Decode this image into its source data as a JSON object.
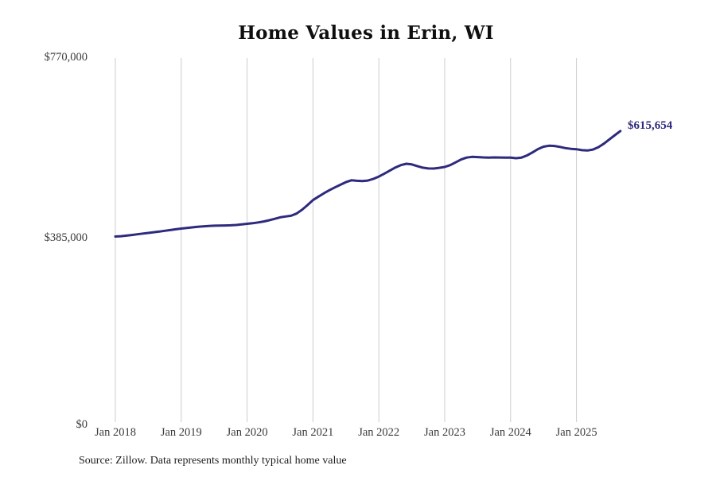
{
  "title": "Home Values in Erin, WI",
  "source_note": "Source: Zillow. Data represents monthly typical home value",
  "colors": {
    "background": "#ffffff",
    "line": "#2e2a7d",
    "grid": "#cccccc",
    "title_text": "#0f0f0f",
    "axis_text": "#3a3a3a",
    "annotation_text": "#2e2a7d"
  },
  "chart_data": {
    "type": "line",
    "title": "Home Values in Erin, WI",
    "xlabel": "",
    "ylabel": "",
    "ylim": [
      0,
      770000
    ],
    "y_ticks": [
      0,
      385000,
      770000
    ],
    "y_tick_labels": [
      "$0",
      "$385,000",
      "$770,000"
    ],
    "x_tick_labels": [
      "Jan 2018",
      "Jan 2019",
      "Jan 2020",
      "Jan 2021",
      "Jan 2022",
      "Jan 2023",
      "Jan 2024",
      "Jan 2025"
    ],
    "x_tick_month_indices": [
      0,
      12,
      24,
      36,
      48,
      60,
      72,
      84
    ],
    "grid": "vertical-only",
    "legend": "none",
    "annotation": {
      "text": "$615,654",
      "value": 615654,
      "position": "end-of-line"
    },
    "series": [
      {
        "name": "Typical home value",
        "frequency": "monthly",
        "start": "Jan 2018",
        "end": "Sep 2025",
        "values": [
          392500,
          393200,
          394400,
          395800,
          397300,
          398800,
          400200,
          401600,
          403000,
          404600,
          406200,
          407800,
          409300,
          410600,
          411900,
          413100,
          414100,
          414900,
          415400,
          415700,
          415900,
          416300,
          417000,
          418100,
          419400,
          420700,
          422300,
          424300,
          426800,
          429900,
          433000,
          435000,
          436500,
          441000,
          449000,
          459000,
          469500,
          477000,
          484000,
          490500,
          496500,
          502000,
          507500,
          511500,
          510500,
          509800,
          511000,
          514500,
          519400,
          525500,
          532000,
          538500,
          543500,
          546400,
          545000,
          541500,
          538200,
          536500,
          536300,
          537800,
          539600,
          543500,
          549500,
          555500,
          559500,
          561000,
          560500,
          559800,
          559500,
          559800,
          559600,
          559400,
          559300,
          558200,
          559500,
          564000,
          570500,
          577500,
          582500,
          584500,
          584000,
          582000,
          579500,
          578000,
          577100,
          575200,
          574500,
          576500,
          581500,
          589000,
          598000,
          607000,
          615654
        ]
      }
    ]
  }
}
